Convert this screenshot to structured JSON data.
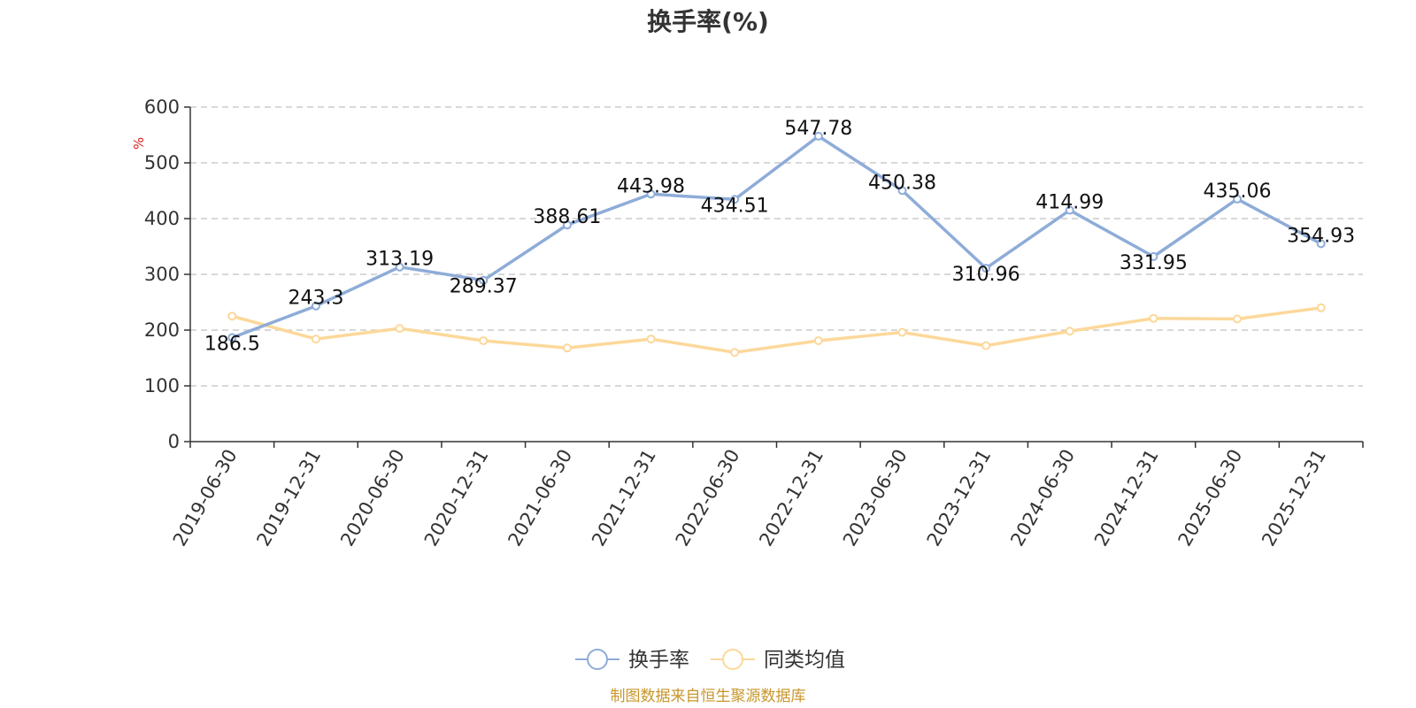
{
  "chart_data": {
    "type": "line",
    "title": "换手率(%)",
    "ylabel": "%",
    "ylim": [
      0,
      600
    ],
    "yticks": [
      "0",
      "100",
      "200",
      "300",
      "400",
      "500",
      "600"
    ],
    "grid": true,
    "legend_position": "bottom",
    "categories": [
      "2019-06-30",
      "2019-12-31",
      "2020-06-30",
      "2020-12-31",
      "2021-06-30",
      "2021-12-31",
      "2022-06-30",
      "2022-12-31",
      "2023-06-30",
      "2023-12-31",
      "2024-06-30",
      "2024-12-31",
      "2025-06-30",
      "2025-12-31"
    ],
    "series": [
      {
        "name": "换手率",
        "color": "#8eacd8",
        "values": [
          186.5,
          243.3,
          313.19,
          289.37,
          388.61,
          443.98,
          434.51,
          547.78,
          450.38,
          310.96,
          414.99,
          331.95,
          435.06,
          354.93
        ],
        "labels": [
          "186.5",
          "243.3",
          "313.19",
          "289.37",
          "388.61",
          "443.98",
          "434.51",
          "547.78",
          "450.38",
          "310.96",
          "414.99",
          "331.95",
          "435.06",
          "354.93"
        ]
      },
      {
        "name": "同类均值",
        "color": "#fcd89a",
        "values": [
          225,
          184,
          203,
          181,
          168,
          184,
          160,
          181,
          196,
          172,
          198,
          221,
          220,
          240
        ]
      }
    ],
    "source": "制图数据来自恒生聚源数据库",
    "source_color": "#c8962a",
    "unit_color": "#e02020"
  }
}
